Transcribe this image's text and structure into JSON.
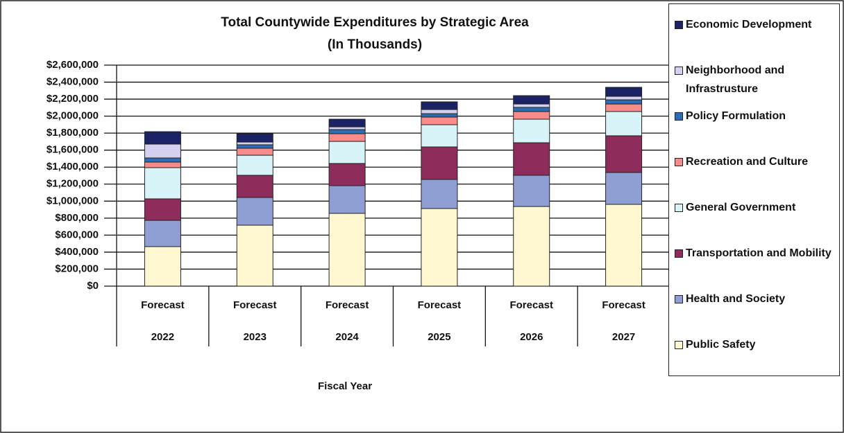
{
  "chart_data": {
    "type": "stacked_bar",
    "title": "Total Countywide Expenditures by Strategic Area",
    "subtitle": "(In Thousands)",
    "x_label": "Fiscal Year",
    "categories": [
      [
        "Forecast",
        "2022"
      ],
      [
        "Forecast",
        "2023"
      ],
      [
        "Forecast",
        "2024"
      ],
      [
        "Forecast",
        "2025"
      ],
      [
        "Forecast",
        "2026"
      ],
      [
        "Forecast",
        "2027"
      ]
    ],
    "series": [
      {
        "name": "Public Safety",
        "color": "#fff8d0",
        "values": [
          465000,
          717000,
          856000,
          913000,
          937000,
          962000
        ]
      },
      {
        "name": "Health and Society",
        "color": "#8f9fd4",
        "values": [
          309000,
          326000,
          326000,
          342000,
          367000,
          375000
        ]
      },
      {
        "name": "Transportation and Mobility",
        "color": "#8e2d5c",
        "values": [
          253000,
          261000,
          261000,
          383000,
          383000,
          432000
        ]
      },
      {
        "name": "General Government",
        "color": "#d9f4f8",
        "values": [
          367000,
          236000,
          260000,
          261000,
          277000,
          285000
        ]
      },
      {
        "name": "Recreation and Culture",
        "color": "#f98b8b",
        "values": [
          65000,
          82000,
          90000,
          90000,
          90000,
          89000
        ]
      },
      {
        "name": "Policy Formulation",
        "color": "#2d6db5",
        "values": [
          49000,
          41000,
          49000,
          40000,
          49000,
          49000
        ]
      },
      {
        "name": "Neighborhood and Infrastrusture",
        "color": "#d4d0ee",
        "values": [
          163000,
          32000,
          32000,
          49000,
          40000,
          41000
        ]
      },
      {
        "name": "Economic Development",
        "color": "#1b2266",
        "values": [
          146000,
          98000,
          90000,
          90000,
          98000,
          106000
        ]
      }
    ],
    "ylim": [
      0,
      2600000
    ],
    "yticks": [
      {
        "value": 0,
        "label": "$0"
      },
      {
        "value": 200000,
        "label": "$200,000"
      },
      {
        "value": 400000,
        "label": "$400,000"
      },
      {
        "value": 600000,
        "label": "$600,000"
      },
      {
        "value": 800000,
        "label": "$800,000"
      },
      {
        "value": 1000000,
        "label": "$1,000,000"
      },
      {
        "value": 1200000,
        "label": "$1,200,000"
      },
      {
        "value": 1400000,
        "label": "$1,400,000"
      },
      {
        "value": 1600000,
        "label": "$1,600,000"
      },
      {
        "value": 1800000,
        "label": "$1,800,000"
      },
      {
        "value": 2000000,
        "label": "$2,000,000"
      },
      {
        "value": 2200000,
        "label": "$2,200,000"
      },
      {
        "value": 2400000,
        "label": "$2,400,000"
      },
      {
        "value": 2600000,
        "label": "$2,600,000"
      }
    ],
    "grid": true
  }
}
